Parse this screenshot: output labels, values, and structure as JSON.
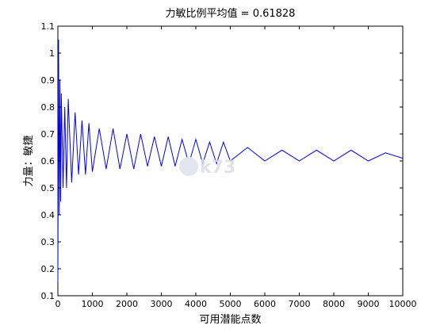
{
  "colors": {
    "series": "#0000ff",
    "axis": "#000000",
    "background": "#ffffff",
    "watermark": "#d9dde6"
  },
  "watermark": {
    "text": "k73",
    "icon": "k73-logo-icon"
  },
  "chart_data": {
    "type": "line",
    "title": "力敏比例平均值 = 0.61828",
    "xlabel": "可用潜能点数",
    "ylabel": "力量：敏捷",
    "xlim": [
      0,
      10000
    ],
    "ylim": [
      0.1,
      1.1
    ],
    "xticks": [
      0,
      1000,
      2000,
      3000,
      4000,
      5000,
      6000,
      7000,
      8000,
      9000,
      10000
    ],
    "xtick_labels": [
      "0",
      "1000",
      "2000",
      "3000",
      "4000",
      "5000",
      "6000",
      "7000",
      "8000",
      "9000",
      "10000"
    ],
    "yticks": [
      0.1,
      0.2,
      0.3,
      0.4,
      0.5,
      0.6,
      0.7,
      0.8,
      0.9,
      1.0,
      1.1
    ],
    "ytick_labels": [
      "0.1",
      "0.2",
      "0.3",
      "0.4",
      "0.5",
      "0.6",
      "0.7",
      "0.8",
      "0.9",
      "1",
      "1.1"
    ],
    "grid": false,
    "legend": false,
    "series": [
      {
        "x": [
          0,
          20,
          40,
          60,
          80,
          100,
          150,
          200,
          250,
          300,
          400,
          500,
          600,
          700,
          800,
          900,
          1000,
          1200,
          1400,
          1600,
          1800,
          2000,
          2200,
          2400,
          2600,
          2800,
          3000,
          3200,
          3400,
          3600,
          3800,
          4000,
          4200,
          4400,
          4600,
          4800,
          5000,
          5500,
          6000,
          6500,
          7000,
          7500,
          8000,
          8500,
          9000,
          9500,
          10000
        ],
        "y": [
          0.15,
          1.05,
          0.4,
          0.9,
          0.45,
          0.85,
          0.5,
          0.8,
          0.5,
          0.83,
          0.52,
          0.78,
          0.55,
          0.75,
          0.55,
          0.74,
          0.56,
          0.72,
          0.57,
          0.72,
          0.57,
          0.7,
          0.57,
          0.7,
          0.58,
          0.69,
          0.58,
          0.69,
          0.58,
          0.68,
          0.59,
          0.68,
          0.59,
          0.67,
          0.59,
          0.67,
          0.6,
          0.65,
          0.6,
          0.64,
          0.6,
          0.64,
          0.6,
          0.64,
          0.6,
          0.63,
          0.61
        ]
      }
    ]
  }
}
